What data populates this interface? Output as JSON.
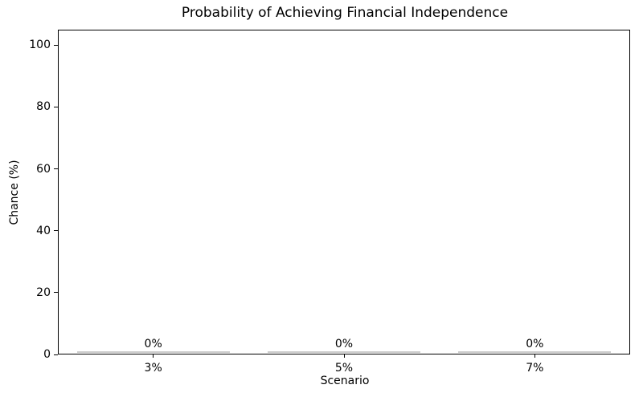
{
  "chart_data": {
    "type": "bar",
    "title": "Probability of Achieving Financial Independence",
    "xlabel": "Scenario",
    "ylabel": "Chance (%)",
    "categories": [
      "3%",
      "5%",
      "7%"
    ],
    "values": [
      0,
      0,
      0
    ],
    "bar_value_labels": [
      "0%",
      "0%",
      "0%"
    ],
    "yticks": [
      0,
      20,
      40,
      60,
      80,
      100
    ],
    "ylim": [
      0,
      105
    ],
    "grid": false,
    "legend_position": "none",
    "bar_color": "#cccccc",
    "axis_color": "#000000",
    "text_color": "#000000",
    "background_color": "#ffffff"
  }
}
